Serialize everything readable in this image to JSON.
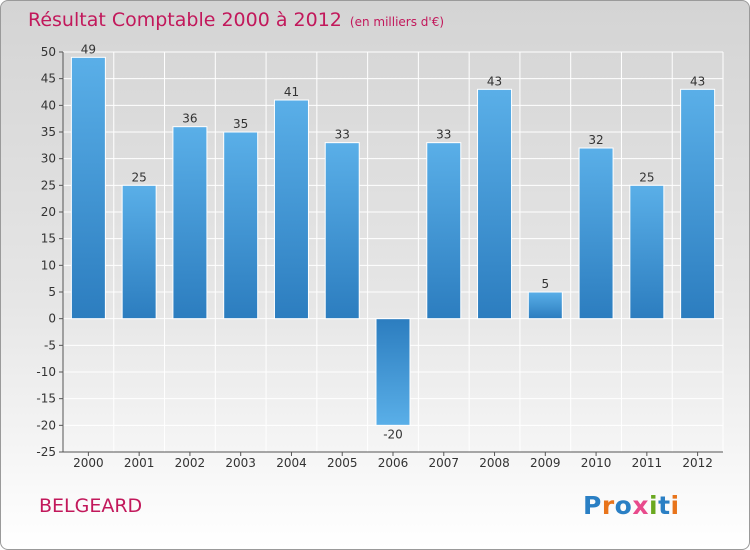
{
  "header": {
    "title": "Résultat Comptable 2000 à 2012",
    "unit": "(en milliers d'€)"
  },
  "town": "BELGEARD",
  "logo": {
    "text": "Proxiti",
    "letters": [
      "P",
      "r",
      "o",
      "x",
      "i",
      "t",
      "i"
    ],
    "colors": [
      "#2a7fc4",
      "#e8741b",
      "#2a7fc4",
      "#e84a8c",
      "#6aa820",
      "#2a7fc4",
      "#e8741b"
    ]
  },
  "colors": {
    "title": "#c2185b",
    "bar_light": "#5aafe8",
    "bar_dark": "#2c7dbf",
    "grid": "#ffffff",
    "axis": "#555555"
  },
  "chart_data": {
    "type": "bar",
    "title": "Résultat Comptable 2000 à 2012",
    "subtitle": "(en milliers d'€)",
    "categories": [
      "2000",
      "2001",
      "2002",
      "2003",
      "2004",
      "2005",
      "2006",
      "2007",
      "2008",
      "2009",
      "2010",
      "2011",
      "2012"
    ],
    "values": [
      49,
      25,
      36,
      35,
      41,
      33,
      -20,
      33,
      43,
      5,
      32,
      25,
      43
    ],
    "ylim": [
      -25,
      50
    ],
    "yticks": [
      50,
      45,
      40,
      35,
      30,
      25,
      20,
      15,
      10,
      5,
      0,
      -5,
      -10,
      -15,
      -20,
      -25
    ],
    "xlabel": "",
    "ylabel": "",
    "grid": true
  }
}
